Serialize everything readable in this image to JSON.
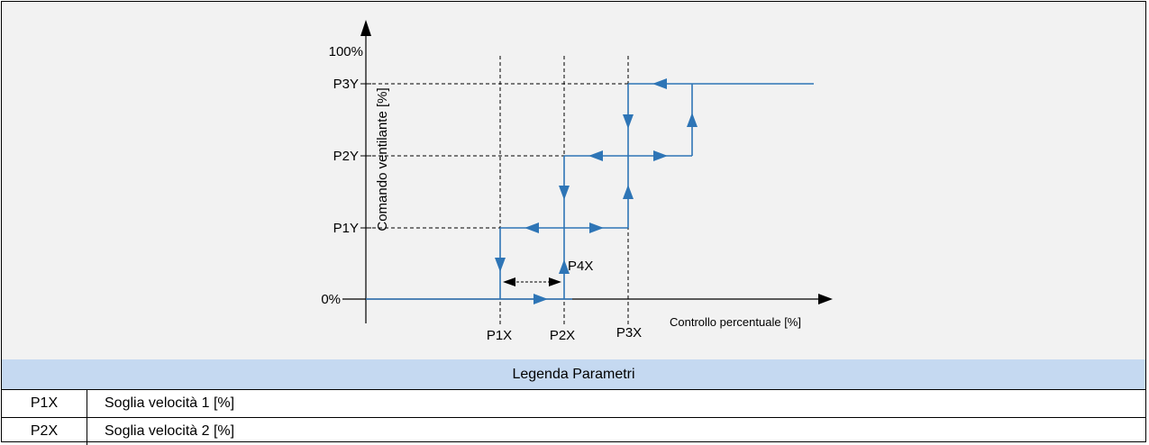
{
  "diagram": {
    "y_axis_label": "Comando ventilante [%]",
    "x_axis_label": "Controllo percentuale [%]",
    "y_ticks": {
      "top": "100%",
      "p3y": "P3Y",
      "p2y": "P2Y",
      "p1y": "P1Y",
      "zero": "0%"
    },
    "x_ticks": {
      "p1x": "P1X",
      "p2x": "P2X",
      "p3x": "P3X"
    },
    "hysteresis_label": "P4X",
    "colors": {
      "curve": "#2e75b6",
      "axis": "#000000",
      "background": "#f2f2f2"
    }
  },
  "legend": {
    "title": "Legenda Parametri",
    "rows": [
      {
        "code": "P1X",
        "description": "Soglia velocità 1 [%]"
      },
      {
        "code": "P2X",
        "description": "Soglia velocità 2 [%]"
      }
    ],
    "header_color": "#c5d9f1"
  }
}
